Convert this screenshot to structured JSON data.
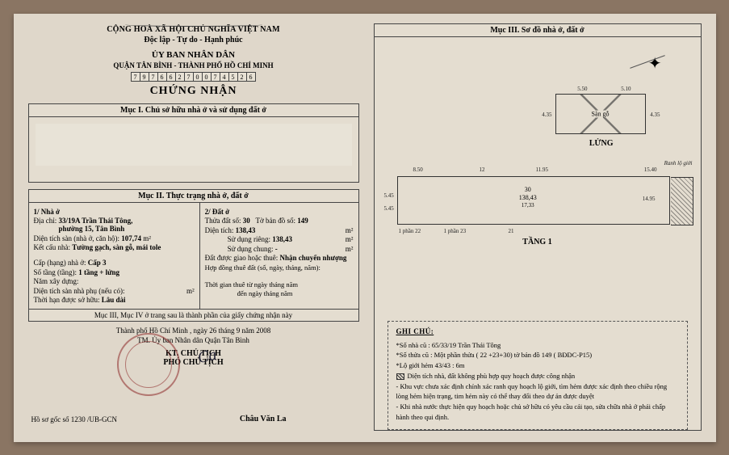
{
  "header": {
    "country": "CỘNG HOÀ XÃ HỘI CHỦ NGHĨA VIỆT NAM",
    "motto": "Độc lập - Tự do - Hạnh phúc",
    "committee": "ỦY BAN NHÂN DÂN",
    "district": "QUẬN TÂN BÌNH - THÀNH PHỐ HỒ CHÍ MINH",
    "barcode": [
      "7",
      "9",
      "7",
      "6",
      "6",
      "2",
      "7",
      "0",
      "0",
      "7",
      "4",
      "5",
      "2",
      "6"
    ],
    "title": "CHỨNG NHẬN"
  },
  "muc1": {
    "heading": "Mục I. Chủ sở hữu nhà ở và sử dụng đất ở"
  },
  "muc2": {
    "heading": "Mục II. Thực trạng nhà ở, đất ở",
    "left": {
      "l1": "1/ Nhà ở",
      "addr_lbl": "Địa chỉ:",
      "addr": "33/19A Trần Thái Tông,\nphường 15, Tân Bình",
      "dtsan_lbl": "Diện tích sàn (nhà ở, căn hộ):",
      "dtsan": "107,74",
      "dtsan_unit": "m²",
      "ket_lbl": "Kết cấu nhà:",
      "ket": "Tường gạch, sàn gỗ, mái tole",
      "cap_lbl": "Cấp (hạng) nhà ở:",
      "cap": "Cấp 3",
      "tang_lbl": "Số tầng (tầng):",
      "tang": "1 tầng + lửng",
      "nam_lbl": "Năm xây dựng:",
      "dtphu_lbl": "Diện tích sàn nhà phụ (nếu có):",
      "dtphu_unit": "m²",
      "thoihan_lbl": "Thời hạn được sở hữu:",
      "thoihan": "Lâu dài"
    },
    "right": {
      "l1": "2/ Đất ở",
      "thua_lbl": "Thửa đất số:",
      "thua": "30",
      "to_lbl": "Tờ bản đồ số:",
      "to": "149",
      "dt_lbl": "Diện tích:",
      "dt": "138,43",
      "unit": "m²",
      "sdr_lbl": "Sử dụng riêng:",
      "sdr": "138,43",
      "sdc_lbl": "Sử dụng chung:",
      "sdc": "-",
      "giao_lbl": "Đất được giao hoặc thuê:",
      "giao": "Nhận chuyển nhượng",
      "hd_lbl": "Hợp đồng thuê đất (số, ngày, tháng, năm):",
      "tg_lbl": "Thời gian thuê từ ngày      tháng      năm",
      "tg2": "đến ngày      tháng      năm"
    },
    "note34": "Mục III, Mục IV ở trang sau là thành phần của giấy chứng nhận này"
  },
  "footer": {
    "date": "Thành phố Hồ Chí Minh , ngày 26 tháng 9 năm 2008",
    "auth": "TM. Ủy ban Nhân dân Quận Tân Bình",
    "kt1": "KT. CHỦ TỊCH",
    "kt2": "PHÓ CHỦ TỊCH",
    "hoso": "Hồ sơ gốc số  1230  /UB-GCN",
    "name": "Châu Văn La"
  },
  "muc3": {
    "heading": "Mục III. Sơ đồ nhà ở, đất ở",
    "lung_label": "LỬNG",
    "lung_inner": "Sàn gỗ",
    "lung_dim_top1": "5.50",
    "lung_dim_top2": "5.10",
    "lung_dim_left": "4.35",
    "lung_dim_right": "4.35",
    "main": {
      "thua": "30",
      "dt": "138,43",
      "dai": "17,33",
      "top_dim1": "8.50",
      "top_dim2": "12",
      "top_dim3": "11.95",
      "side_l": "5.45",
      "side_l2": "5.45",
      "bot1": "1 phần 22",
      "bot2": "1 phần 23",
      "bot3": "21",
      "rt1": "15.40",
      "rt2": "14.95",
      "hanh": "Ranh lộ giới"
    },
    "tang1": "TẦNG 1",
    "ghichu": {
      "title": "GHI CHÚ:",
      "l1": "*Số nhà cũ : 65/33/19 Trần Thái Tông",
      "l2": "*Số thửa cũ : Một phần thửa ( 22 +23+30)  tờ bản đồ 149 ( BĐĐC-P15)",
      "l3": "*Lộ giới hẻm 43/43 : 6m",
      "leg": "Diện tích nhà, đất không phù hợp quy hoạch được công nhận",
      "l4": "- Khu vực chưa xác định chính xác ranh quy hoạch lộ giới, tìm hẻm được xác định theo chiều rộng lòng hẻm hiện trạng, tim hẻm này có thể thay đổi theo dự án được duyệt",
      "l5": "- Khi nhà nước thực hiện quy hoạch hoặc chủ sở hữu có yêu cầu cải tạo, sửa chữa nhà ở phải chấp hành theo qui định."
    }
  }
}
